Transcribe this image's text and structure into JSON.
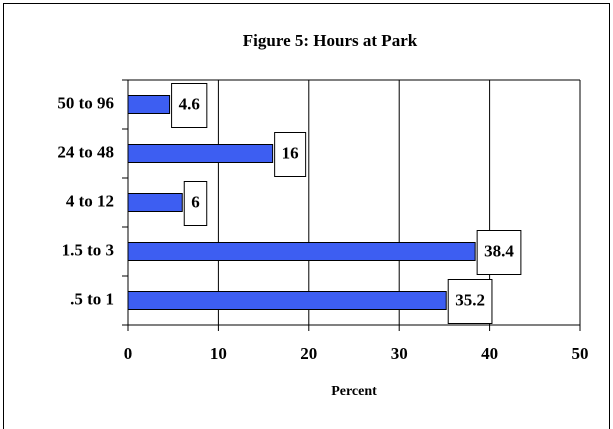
{
  "chart_data": {
    "type": "bar",
    "orientation": "horizontal",
    "title": "Figure 5: Hours at Park",
    "x_label": "Percent",
    "categories": [
      "50 to 96",
      "24 to 48",
      "4 to 12",
      "1.5 to 3",
      ".5 to 1"
    ],
    "values": [
      4.6,
      16,
      6,
      38.4,
      35.2
    ],
    "color": "#3d5ef2",
    "xlim": [
      0,
      50
    ],
    "xticks": [
      0,
      10,
      20,
      30,
      40,
      50
    ],
    "grid": true
  }
}
